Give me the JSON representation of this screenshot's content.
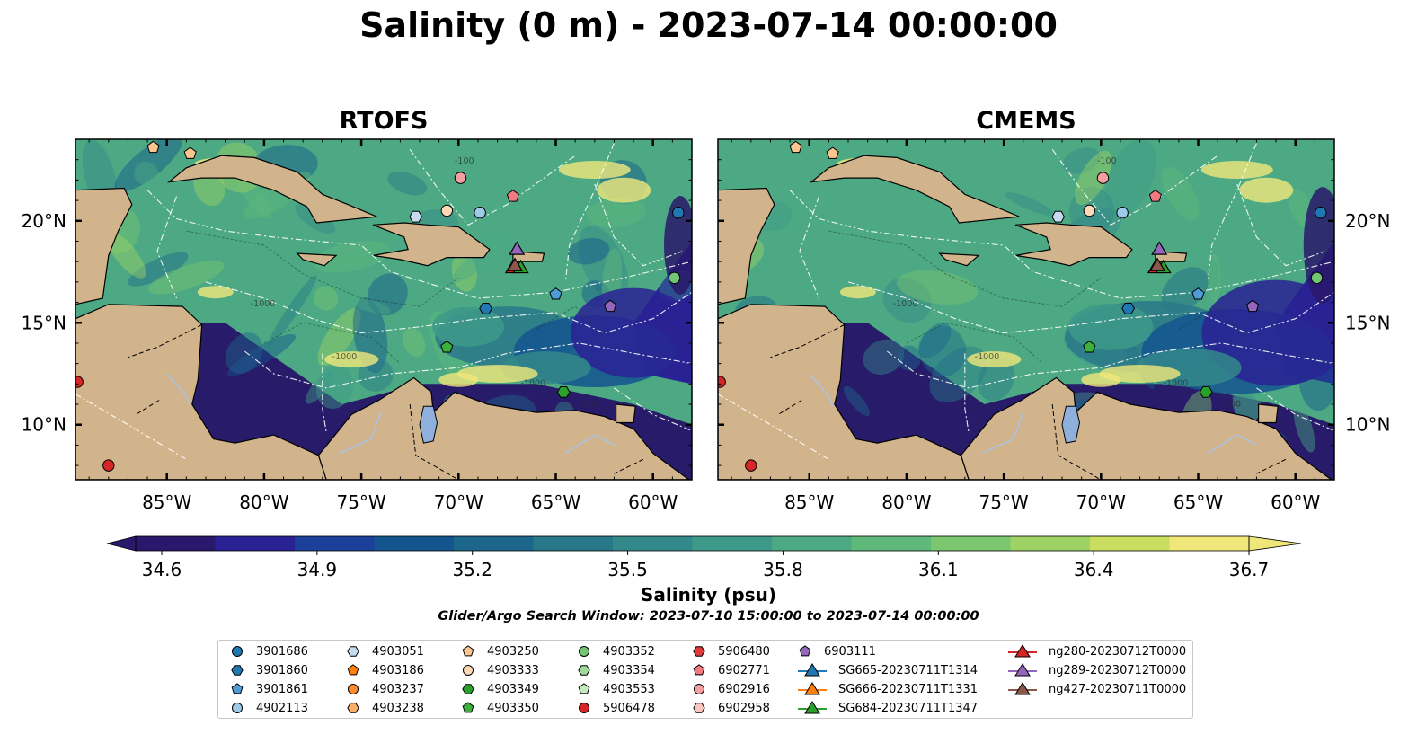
{
  "title": "Salinity (0 m) - 2023-07-14 00:00:00",
  "panels": [
    {
      "name": "RTOFS",
      "title": "RTOFS"
    },
    {
      "name": "CMEMS",
      "title": "CMEMS"
    }
  ],
  "map": {
    "extent_lon": [
      -89.7,
      -58.0
    ],
    "extent_lat": [
      7.3,
      24.0
    ],
    "lon_ticks": [
      "85°W",
      "80°W",
      "75°W",
      "70°W",
      "65°W",
      "60°W"
    ],
    "lat_ticks": [
      "20°N",
      "15°N",
      "10°N"
    ],
    "contour_labels": [
      "-100",
      "-1000"
    ],
    "land_color": "#d2b48c",
    "lake_color": "#8fb0dc",
    "deep_fill_color": "#281c6a"
  },
  "colorbar": {
    "label": "Salinity (psu)",
    "tick_labels": [
      "34.6",
      "34.9",
      "35.2",
      "35.5",
      "35.8",
      "36.1",
      "36.4",
      "36.7"
    ],
    "min": 34.6,
    "max": 36.7,
    "colormap": "haline",
    "colors": [
      "#29186b",
      "#2a2294",
      "#1c3f99",
      "#14558f",
      "#1c668b",
      "#29788a",
      "#33888a",
      "#3d9988",
      "#4ca983",
      "#5fb97a",
      "#7bc66e",
      "#9ed264",
      "#c9de61",
      "#f0e77a"
    ]
  },
  "search_window": "Glider/Argo Search Window: 2023-07-10 15:00:00 to 2023-07-14 00:00:00",
  "legend": {
    "items": [
      {
        "label": "3901686",
        "marker": "circle",
        "color": "#1f77b4"
      },
      {
        "label": "3901860",
        "marker": "hexagon",
        "color": "#1f77b4"
      },
      {
        "label": "3901861",
        "marker": "pentagon",
        "color": "#4e9bd6"
      },
      {
        "label": "4902113",
        "marker": "circle",
        "color": "#9ecae9"
      },
      {
        "label": "4903051",
        "marker": "hexagon",
        "color": "#c6dbef"
      },
      {
        "label": "4903186",
        "marker": "pentagon",
        "color": "#ff7f0e"
      },
      {
        "label": "4903237",
        "marker": "circle",
        "color": "#ff8c2a"
      },
      {
        "label": "4903238",
        "marker": "hexagon",
        "color": "#fdae6b"
      },
      {
        "label": "4903250",
        "marker": "pentagon",
        "color": "#fdc58f"
      },
      {
        "label": "4903333",
        "marker": "circle",
        "color": "#fdd9b5"
      },
      {
        "label": "4903349",
        "marker": "hexagon",
        "color": "#2ca02c"
      },
      {
        "label": "4903350",
        "marker": "pentagon",
        "color": "#3bb03b"
      },
      {
        "label": "4903352",
        "marker": "circle",
        "color": "#74c476"
      },
      {
        "label": "4903354",
        "marker": "hexagon",
        "color": "#a1d99b"
      },
      {
        "label": "4903553",
        "marker": "pentagon",
        "color": "#c7e9c0"
      },
      {
        "label": "5906478",
        "marker": "circle",
        "color": "#d62728"
      },
      {
        "label": "5906480",
        "marker": "hexagon",
        "color": "#e03a3a"
      },
      {
        "label": "6902771",
        "marker": "pentagon",
        "color": "#f07a80"
      },
      {
        "label": "6902916",
        "marker": "circle",
        "color": "#f4a0a0"
      },
      {
        "label": "6902958",
        "marker": "hexagon",
        "color": "#fcc5c0"
      },
      {
        "label": "6903111",
        "marker": "pentagon",
        "color": "#9467bd"
      },
      {
        "label": "SG665-20230711T1314",
        "marker": "triangle-line",
        "color": "#1f77b4"
      },
      {
        "label": "SG666-20230711T1331",
        "marker": "triangle-line",
        "color": "#ff7f0e"
      },
      {
        "label": "SG684-20230711T1347",
        "marker": "triangle-line",
        "color": "#2ca02c"
      },
      {
        "label": "ng280-20230712T0000",
        "marker": "triangle-line",
        "color": "#d62728"
      },
      {
        "label": "ng289-20230712T0000",
        "marker": "triangle-line",
        "color": "#9467bd"
      },
      {
        "label": "ng427-20230711T0000",
        "marker": "triangle-line",
        "color": "#8c564b"
      }
    ]
  },
  "observations": [
    {
      "id": "3901686",
      "lon": -58.7,
      "lat": 20.4
    },
    {
      "id": "4902113",
      "lon": -68.9,
      "lat": 20.4
    },
    {
      "id": "4903051",
      "lon": -72.2,
      "lat": 20.2
    },
    {
      "id": "4903333",
      "lon": -70.6,
      "lat": 20.5
    },
    {
      "id": "6902916",
      "lon": -69.9,
      "lat": 22.1
    },
    {
      "id": "6902771",
      "lon": -67.2,
      "lat": 21.2
    },
    {
      "id": "4903250",
      "lon": -83.8,
      "lat": 23.3
    },
    {
      "id": "4903250",
      "lon": -85.7,
      "lat": 23.6
    },
    {
      "id": "3901861",
      "lon": -65.0,
      "lat": 16.4
    },
    {
      "id": "3901860",
      "lon": -68.6,
      "lat": 15.7
    },
    {
      "id": "6903111",
      "lon": -62.2,
      "lat": 15.8
    },
    {
      "id": "4903350",
      "lon": -70.6,
      "lat": 13.8
    },
    {
      "id": "4903349",
      "lon": -64.6,
      "lat": 11.6
    },
    {
      "id": "4903352",
      "lon": -58.9,
      "lat": 17.2
    },
    {
      "id": "5906478",
      "lon": -89.6,
      "lat": 12.1
    },
    {
      "id": "5906478",
      "lon": -88.0,
      "lat": 8.0
    },
    {
      "id": "ng289-20230712T0000",
      "lon": -67.0,
      "lat": 18.6
    },
    {
      "id": "ng280-20230712T0000",
      "lon": -67.2,
      "lat": 17.7
    },
    {
      "id": "SG684-20230711T1347",
      "lon": -66.8,
      "lat": 17.7
    },
    {
      "id": "ng427-20230711T0000",
      "lon": -67.1,
      "lat": 17.8
    }
  ]
}
